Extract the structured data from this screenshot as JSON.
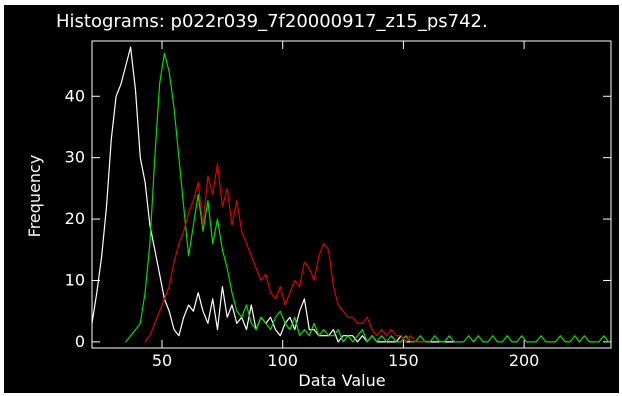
{
  "chart_data": {
    "type": "line",
    "title": "Histograms: p022r039_7f20000917_z15_ps742.",
    "xlabel": "Data Value",
    "ylabel": "Frequency",
    "xlim": [
      21,
      236
    ],
    "ylim": [
      -1,
      49
    ],
    "xticks": [
      50,
      100,
      150,
      200
    ],
    "yticks": [
      0,
      10,
      20,
      30,
      40
    ],
    "grid": false,
    "legend": "none",
    "series": [
      {
        "color": "#ffffff",
        "x": [
          21,
          23,
          25,
          27,
          29,
          31,
          33,
          35,
          37,
          39,
          41,
          43,
          45,
          47,
          49,
          51,
          53,
          55,
          57,
          59,
          61,
          63,
          65,
          67,
          69,
          71,
          73,
          75,
          77,
          79,
          81,
          83,
          85,
          87,
          89,
          91,
          93,
          95,
          97,
          99,
          101,
          103,
          105,
          107,
          109,
          111,
          113,
          115,
          117,
          119,
          121,
          123,
          125,
          127,
          129,
          131,
          133,
          135,
          137,
          139,
          141,
          143,
          145,
          147,
          149,
          151,
          153,
          155,
          157,
          159,
          161,
          163,
          165,
          167,
          169,
          171
        ],
        "values": [
          3,
          8,
          14,
          22,
          33,
          40,
          42,
          45,
          48,
          41,
          30,
          26,
          19,
          15,
          11,
          7,
          5,
          2,
          1,
          4,
          6,
          5,
          8,
          5,
          3,
          7,
          2,
          9,
          4,
          6,
          3,
          4,
          2,
          6,
          2,
          4,
          3,
          4,
          2,
          1,
          3,
          4,
          2,
          5,
          7,
          2,
          2,
          1,
          1,
          1,
          2,
          0,
          1,
          1,
          1,
          0,
          1,
          0,
          1,
          0,
          0,
          0,
          0,
          0,
          1,
          0,
          0,
          0,
          0,
          0,
          0,
          0,
          0,
          0,
          0,
          0
        ]
      },
      {
        "color": "#00dd00",
        "x": [
          35,
          37,
          39,
          41,
          43,
          45,
          47,
          49,
          51,
          53,
          55,
          57,
          59,
          61,
          63,
          65,
          67,
          69,
          71,
          73,
          75,
          77,
          79,
          81,
          83,
          85,
          87,
          89,
          91,
          93,
          95,
          97,
          99,
          101,
          103,
          105,
          107,
          109,
          111,
          113,
          115,
          117,
          119,
          121,
          123,
          125,
          127,
          129,
          131,
          133,
          135,
          137,
          139,
          141,
          143,
          145,
          147,
          149,
          151,
          153,
          155,
          157,
          159,
          161,
          163,
          165,
          167,
          169,
          171,
          173,
          175,
          177,
          179,
          181,
          183,
          185,
          187,
          189,
          191,
          193,
          195,
          197,
          199,
          201,
          203,
          205,
          207,
          209,
          211,
          213,
          215,
          217,
          219,
          221,
          223,
          225,
          227,
          229,
          231,
          233,
          235
        ],
        "values": [
          0,
          1,
          2,
          3,
          8,
          16,
          30,
          42,
          47,
          44,
          38,
          30,
          22,
          14,
          19,
          24,
          18,
          23,
          16,
          20,
          15,
          12,
          8,
          5,
          4,
          6,
          3,
          2,
          4,
          3,
          2,
          4,
          5,
          3,
          2,
          4,
          1,
          2,
          1,
          3,
          1,
          2,
          1,
          1,
          2,
          0,
          1,
          0,
          1,
          2,
          0,
          1,
          0,
          1,
          0,
          1,
          0,
          0,
          1,
          0,
          0,
          1,
          0,
          0,
          1,
          0,
          0,
          1,
          0,
          0,
          0,
          1,
          0,
          1,
          0,
          0,
          1,
          0,
          0,
          1,
          0,
          0,
          1,
          0,
          0,
          0,
          1,
          0,
          0,
          0,
          1,
          0,
          0,
          1,
          0,
          1,
          0,
          0,
          0,
          1,
          0
        ]
      },
      {
        "color": "#dd0000",
        "x": [
          43,
          45,
          47,
          49,
          51,
          53,
          55,
          57,
          59,
          61,
          63,
          65,
          67,
          69,
          71,
          73,
          75,
          77,
          79,
          81,
          83,
          85,
          87,
          89,
          91,
          93,
          95,
          97,
          99,
          101,
          103,
          105,
          107,
          109,
          111,
          113,
          115,
          117,
          119,
          121,
          123,
          125,
          127,
          129,
          131,
          133,
          135,
          137,
          139,
          141,
          143,
          145,
          147,
          149,
          151,
          153,
          155,
          157,
          159
        ],
        "values": [
          0,
          1,
          3,
          5,
          7,
          9,
          13,
          16,
          18,
          21,
          23,
          26,
          19,
          27,
          24,
          29,
          22,
          25,
          19,
          23,
          18,
          16,
          14,
          12,
          10,
          11,
          8,
          7,
          9,
          6,
          8,
          10,
          9,
          13,
          12,
          10,
          14,
          16,
          15,
          9,
          6,
          5,
          4,
          4,
          3,
          3,
          4,
          2,
          1,
          2,
          1,
          2,
          1,
          1,
          0,
          1,
          0,
          0,
          0
        ]
      }
    ]
  }
}
